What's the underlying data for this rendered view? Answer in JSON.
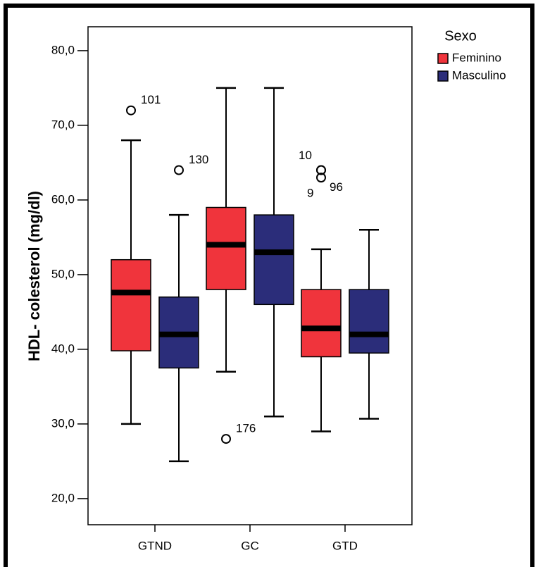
{
  "chart_data": {
    "type": "boxplot",
    "y_label": "HDL- colesterol (mg/dl)",
    "categories": [
      "GTND",
      "GC",
      "GTD"
    ],
    "ylim": [
      16.5,
      83.2
    ],
    "yticks": [
      {
        "value": 20,
        "label": "20,0"
      },
      {
        "value": 30,
        "label": "30,0"
      },
      {
        "value": 40,
        "label": "40,0"
      },
      {
        "value": 50,
        "label": "50,0"
      },
      {
        "value": 60,
        "label": "60,0"
      },
      {
        "value": 70,
        "label": "70,0"
      },
      {
        "value": 80,
        "label": "80,0"
      }
    ],
    "legend_title": "Sexo",
    "legend_position": "right",
    "series": [
      {
        "name": "Feminino",
        "color": "#f0343c",
        "boxes": [
          {
            "min": 30,
            "q1": 39.8,
            "median": 47.6,
            "q3": 52,
            "max": 68,
            "outliers": [
              {
                "value": 72,
                "label": "101"
              }
            ]
          },
          {
            "min": 37,
            "q1": 48,
            "median": 54,
            "q3": 59,
            "max": 75,
            "outliers": [
              {
                "value": 28,
                "label": "176"
              }
            ]
          },
          {
            "min": 29,
            "q1": 39,
            "median": 42.8,
            "q3": 48,
            "max": 53.4,
            "outliers": [
              {
                "value": 64,
                "label": "10"
              },
              {
                "value": 63,
                "label": "9"
              },
              {
                "value": 64,
                "label": "96"
              }
            ]
          }
        ]
      },
      {
        "name": "Masculino",
        "color": "#2b2d7a",
        "boxes": [
          {
            "min": 25,
            "q1": 37.5,
            "median": 42,
            "q3": 47,
            "max": 58,
            "outliers": [
              {
                "value": 64,
                "label": "130"
              }
            ]
          },
          {
            "min": 31,
            "q1": 46,
            "median": 53,
            "q3": 58,
            "max": 75,
            "outliers": []
          },
          {
            "min": 30.7,
            "q1": 39.5,
            "median": 42,
            "q3": 48,
            "max": 56,
            "outliers": []
          }
        ]
      }
    ]
  }
}
